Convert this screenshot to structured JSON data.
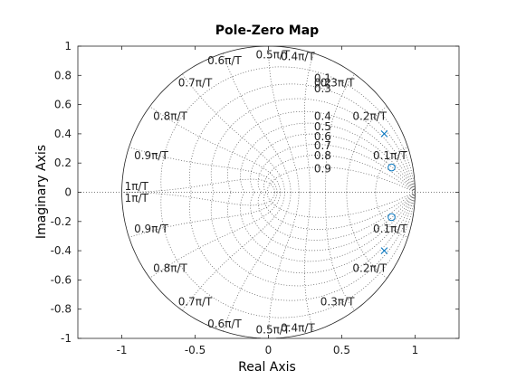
{
  "chart_data": {
    "type": "scatter",
    "title": "Pole-Zero Map",
    "xlabel": "Real Axis",
    "ylabel": "Imaginary Axis",
    "xlim": [
      -1.3,
      1.3
    ],
    "ylim": [
      -1,
      1
    ],
    "x_ticks": [
      -1,
      -0.5,
      0,
      0.5,
      1
    ],
    "x_tick_labels": [
      "-1",
      "-0.5",
      "0",
      "0.5",
      "1"
    ],
    "y_ticks": [
      1,
      0.8,
      0.6,
      0.4,
      0.2,
      0,
      -0.2,
      -0.4,
      -0.6,
      -0.8,
      -1
    ],
    "y_tick_labels": [
      "1",
      "0.8",
      "0.6",
      "0.4",
      "0.2",
      "0",
      "-0.2",
      "-0.4",
      "-0.6",
      "-0.8",
      "-1"
    ],
    "poles": [
      {
        "re": 0.79,
        "im": 0.4
      },
      {
        "re": 0.79,
        "im": -0.4
      }
    ],
    "zeros": [
      {
        "re": 0.84,
        "im": 0.17
      },
      {
        "re": 0.84,
        "im": -0.17
      }
    ],
    "damping_grid": [
      0.1,
      0.2,
      0.3,
      0.4,
      0.5,
      0.6,
      0.7,
      0.8,
      0.9
    ],
    "damping_labels": [
      "0.1",
      "0.2",
      "0.3",
      "0.4",
      "0.5",
      "0.6",
      "0.7",
      "0.8",
      "0.9"
    ],
    "natural_frequency_grid": [
      0.1,
      0.2,
      0.3,
      0.4,
      0.5,
      0.6,
      0.7,
      0.8,
      0.9,
      1.0
    ],
    "frequency_labels_upper": [
      "0.1π/T",
      "0.2π/T",
      "0.3π/T",
      "0.4π/T",
      "0.5π/T",
      "0.6π/T",
      "0.7π/T",
      "0.8π/T",
      "0.9π/T",
      "1π/T"
    ],
    "frequency_labels_lower": [
      "0.1π/T",
      "0.2π/T",
      "0.3π/T",
      "0.4π/T",
      "0.5π/T",
      "0.6π/T",
      "0.7π/T",
      "0.8π/T",
      "0.9π/T",
      "1π/T"
    ],
    "grid": true,
    "colors": {
      "markers": "#0072bd",
      "axes": "#262626",
      "grid": "#555555",
      "background": "#ffffff"
    }
  }
}
